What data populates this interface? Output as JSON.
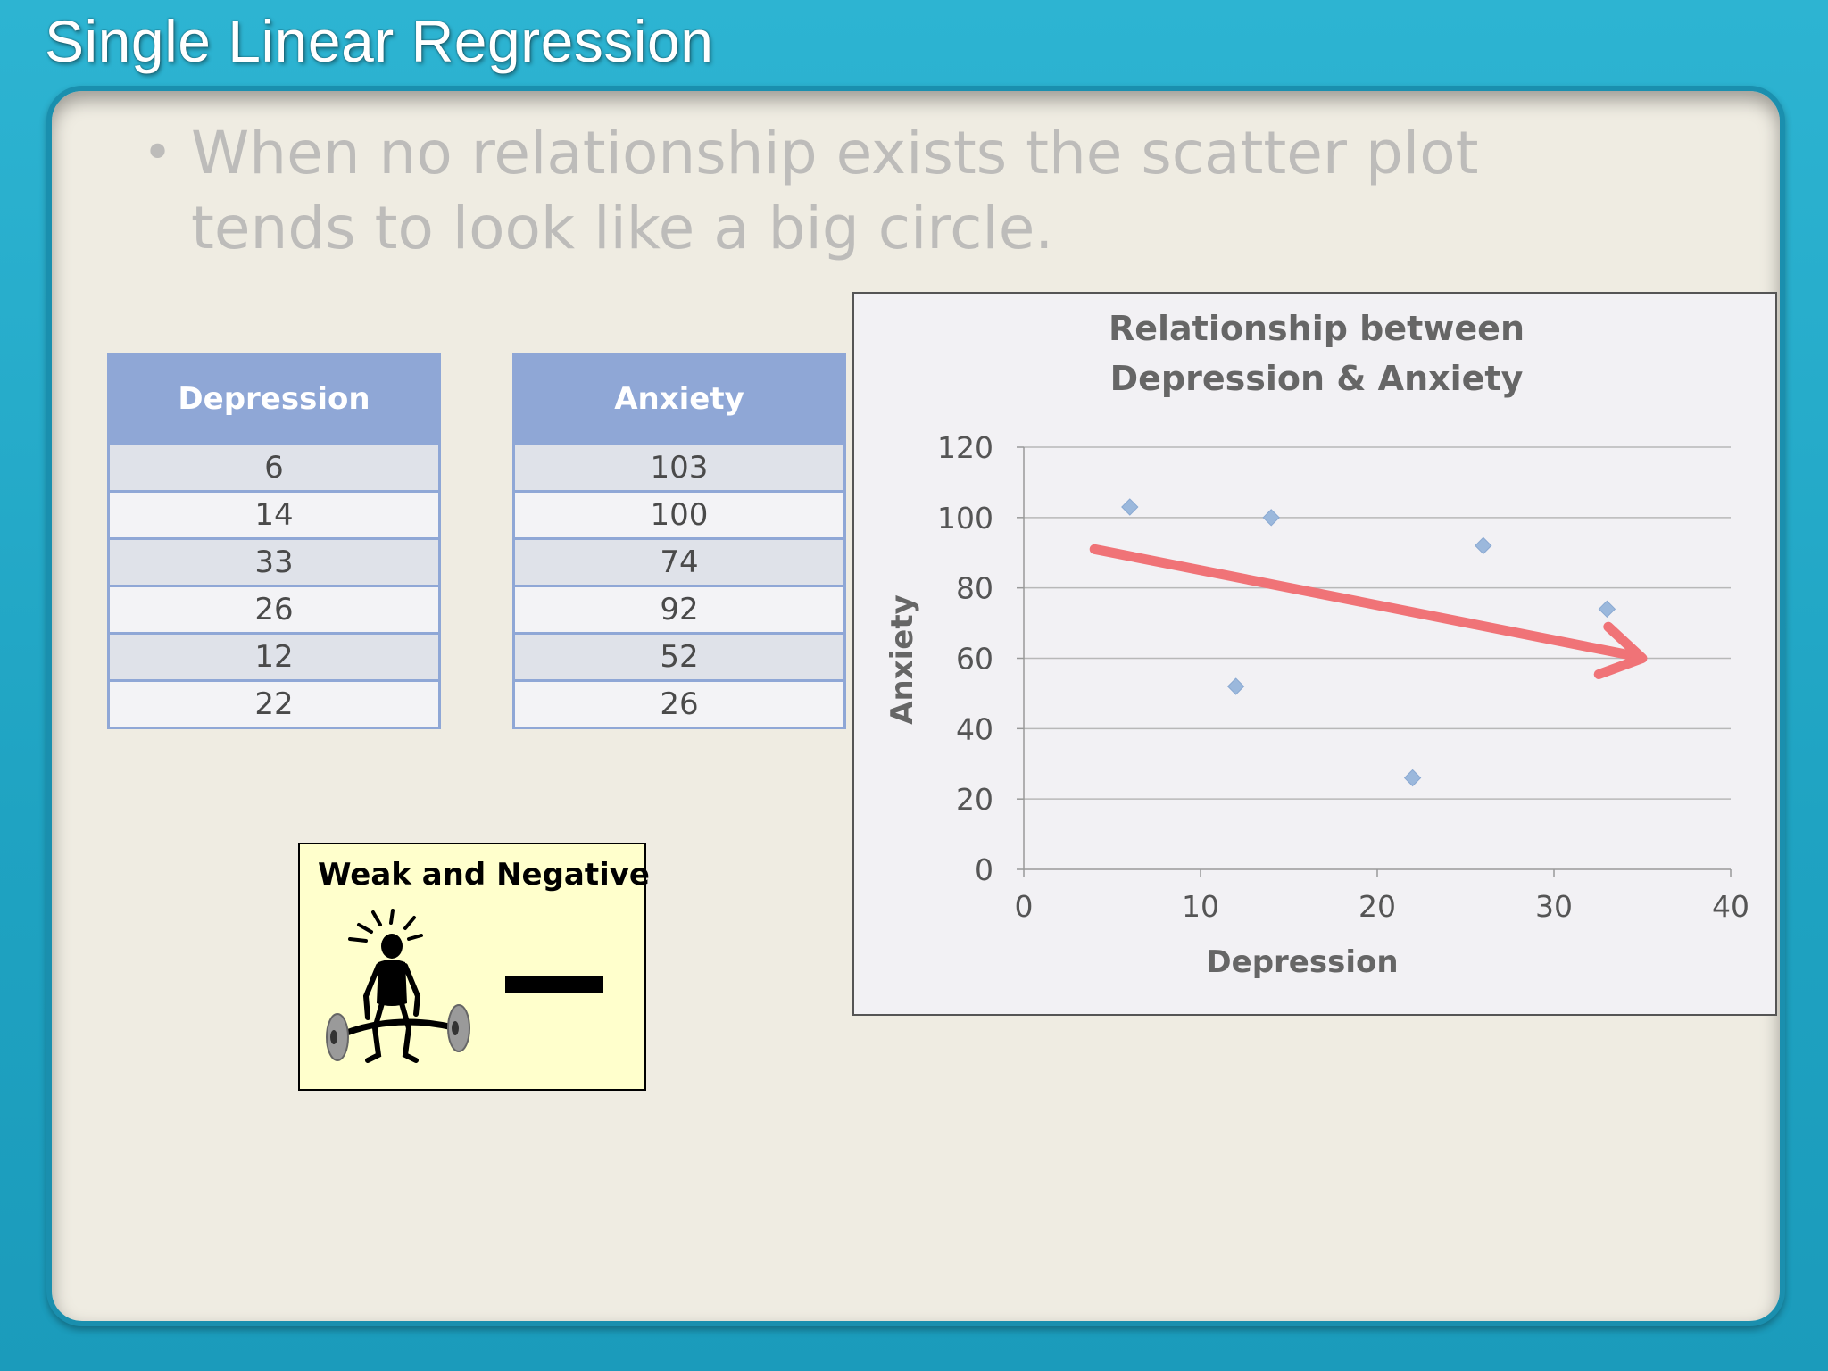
{
  "slide": {
    "title": "Single Linear Regression",
    "bullet_symbol": "•",
    "bullet": "When no relationship exists the scatter plot tends to look like a big circle."
  },
  "tables": {
    "depression": {
      "header": "Depression",
      "values": [
        "6",
        "14",
        "33",
        "26",
        "12",
        "22"
      ]
    },
    "anxiety": {
      "header": "Anxiety",
      "values": [
        "103",
        "100",
        "74",
        "92",
        "52",
        "26"
      ]
    }
  },
  "callout": {
    "title": "Weak and Negative",
    "icon": "weightlifter-icon",
    "symbol": "minus-sign"
  },
  "colors": {
    "frame": "#27aac7",
    "panel": "#efece2",
    "table_header": "#8fa7d6",
    "marker": "#9bb8dc",
    "arrow": "#f07377",
    "callout_bg": "#ffffcc"
  },
  "chart_data": {
    "type": "scatter",
    "title_lines": [
      "Relationship between",
      "Depression & Anxiety"
    ],
    "xlabel": "Depression",
    "ylabel": "Anxiety",
    "xlim": [
      0,
      40
    ],
    "ylim": [
      0,
      120
    ],
    "xticks": [
      0,
      10,
      20,
      30,
      40
    ],
    "yticks": [
      0,
      20,
      40,
      60,
      80,
      100,
      120
    ],
    "grid": "horizontal",
    "legend": "none",
    "series": [
      {
        "x": [
          6,
          14,
          33,
          26,
          12,
          22
        ],
        "y": [
          103,
          100,
          74,
          92,
          52,
          26
        ],
        "marker": "diamond"
      }
    ],
    "annotations": [
      {
        "type": "arrow",
        "from": [
          4,
          91
        ],
        "to": [
          35,
          60
        ]
      }
    ]
  }
}
